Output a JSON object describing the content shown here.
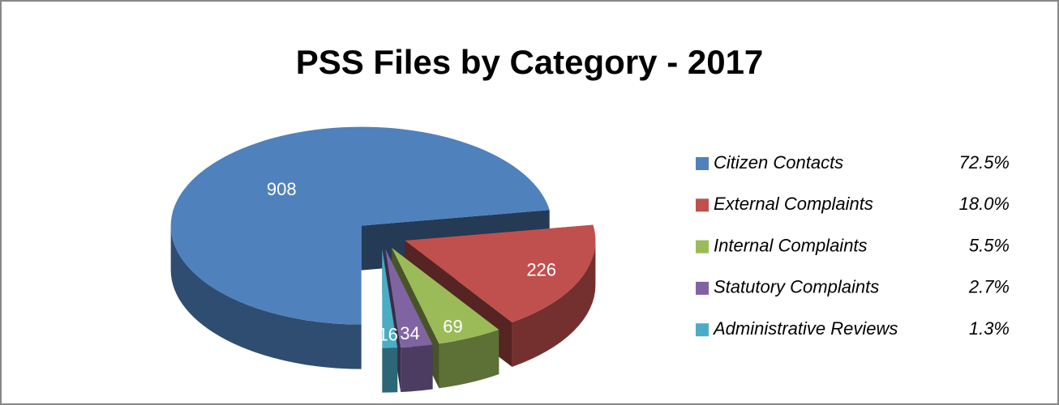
{
  "chart_data": {
    "type": "pie",
    "title": "PSS Files by Category - 2017",
    "categories": [
      "Citizen Contacts",
      "External Complaints",
      "Internal Complaints",
      "Statutory Complaints",
      "Administrative Reviews"
    ],
    "values": [
      908,
      226,
      69,
      34,
      16
    ],
    "percent_labels": [
      "72.5%",
      "18.0%",
      "5.5%",
      "2.7%",
      "1.3%"
    ],
    "colors": [
      "#4f81bd",
      "#c0504d",
      "#9bbb59",
      "#8064a2",
      "#4bacc6"
    ],
    "legend": "right"
  }
}
